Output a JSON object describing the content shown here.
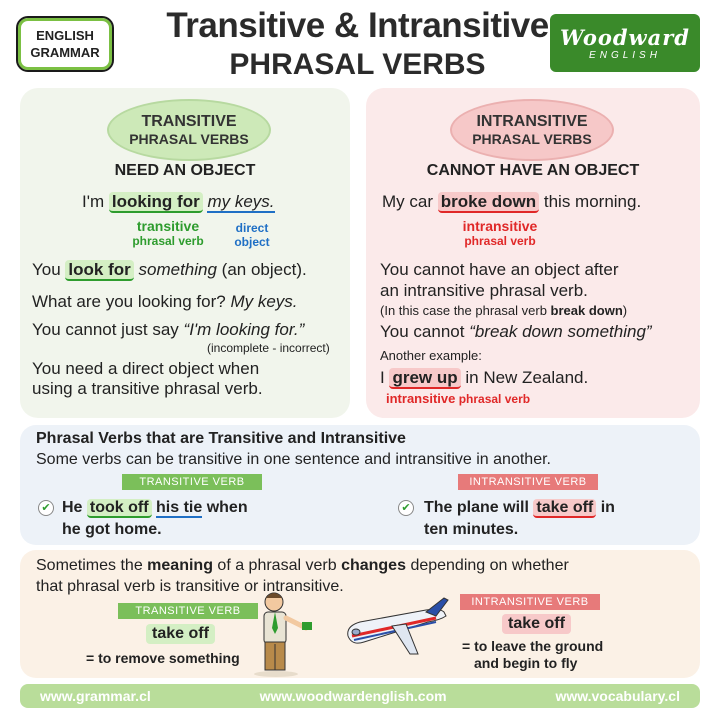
{
  "header": {
    "badge_line1": "ENGLISH",
    "badge_line2": "GRAMMAR",
    "title_line1": "Transitive & Intransitive",
    "title_line2": "PHRASAL VERBS",
    "logo_main": "Woodward",
    "logo_sub": "ENGLISH"
  },
  "transitive": {
    "oval_line1": "TRANSITIVE",
    "oval_line2": "PHRASAL VERBS",
    "need": "NEED AN OBJECT",
    "ex_pre": "I'm",
    "ex_verb": "looking for",
    "ex_obj": "my keys.",
    "lbl_verb1": "transitive",
    "lbl_verb2": "phrasal verb",
    "lbl_obj1": "direct",
    "lbl_obj2": "object",
    "s1_pre": "You",
    "s1_verb": "look for",
    "s1_obj": "something",
    "s1_post": "(an object).",
    "s2_pre": "What are you looking for?",
    "s2_it": "My keys.",
    "s3_pre": "You cannot just say",
    "s3_it": "“I'm looking for.”",
    "s3_note": "(incomplete - incorrect)",
    "s4_l1": "You need a direct object when",
    "s4_l2": "using a transitive phrasal verb."
  },
  "intransitive": {
    "oval_line1": "INTRANSITIVE",
    "oval_line2": "PHRASAL VERBS",
    "cannot": "CANNOT HAVE AN OBJECT",
    "ex_pre": "My car",
    "ex_verb": "broke down",
    "ex_post": "this morning.",
    "lbl1": "intransitive",
    "lbl2": "phrasal verb",
    "s1_l1": "You cannot have an object after",
    "s1_l2": "an intransitive phrasal verb.",
    "s2_pre": "(In this case the phrasal verb",
    "s2_bold": "break down",
    "s2_post": ")",
    "s3_pre": "You cannot",
    "s3_it": "“break down something”",
    "s4": "Another example:",
    "s5_pre": "I",
    "s5_verb": "grew up",
    "s5_post": "in New Zealand.",
    "s5_lbl1": "intransitive",
    "s5_lbl2": "phrasal verb"
  },
  "both": {
    "heading": "Phrasal Verbs that are Transitive and Intransitive",
    "sub": "Some verbs can be transitive in one sentence and intransitive in another.",
    "tag_t": "TRANSITIVE VERB",
    "tag_i": "INTRANSITIVE VERB",
    "t_pre": "He",
    "t_verb": "took off",
    "t_obj": "his tie",
    "t_post": "when",
    "t_l2": "he got home.",
    "i_pre": "The plane will",
    "i_verb": "take off",
    "i_post": "in",
    "i_l2": "ten minutes."
  },
  "meaning": {
    "l1_a": "Sometimes the",
    "l1_b": "meaning",
    "l1_c": "of a phrasal verb",
    "l1_d": "changes",
    "l1_e": "depending on whether",
    "l2": "that phrasal verb is transitive or intransitive.",
    "tag_t": "TRANSITIVE VERB",
    "verb_t": "take off",
    "def_t": "= to remove something",
    "tag_i": "INTRANSITIVE VERB",
    "verb_i": "take off",
    "def_i1": "= to leave the ground",
    "def_i2": "and begin to fly"
  },
  "footer": {
    "link1": "www.grammar.cl",
    "link2": "www.woodwardenglish.com",
    "link3": "www.vocabulary.cl"
  },
  "colors": {
    "green": "#2e9c2e",
    "blue": "#1f6fc5",
    "red": "#e02828",
    "logo_bg": "#3a8a2a"
  }
}
